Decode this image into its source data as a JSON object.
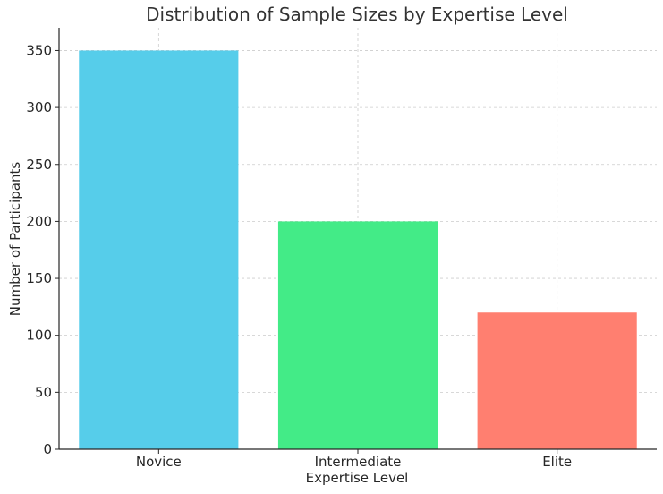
{
  "chart_data": {
    "type": "bar",
    "title": "Distribution of Sample Sizes by Expertise Level",
    "xlabel": "Expertise Level",
    "ylabel": "Number of Participants",
    "categories": [
      "Novice",
      "Intermediate",
      "Elite"
    ],
    "values": [
      350,
      200,
      120
    ],
    "colors": [
      "#56cdea",
      "#43eb87",
      "#ff7f70"
    ],
    "ylim": [
      0,
      370
    ],
    "yticks": [
      0,
      50,
      100,
      150,
      200,
      250,
      300,
      350
    ],
    "grid": true,
    "legend": "none"
  }
}
